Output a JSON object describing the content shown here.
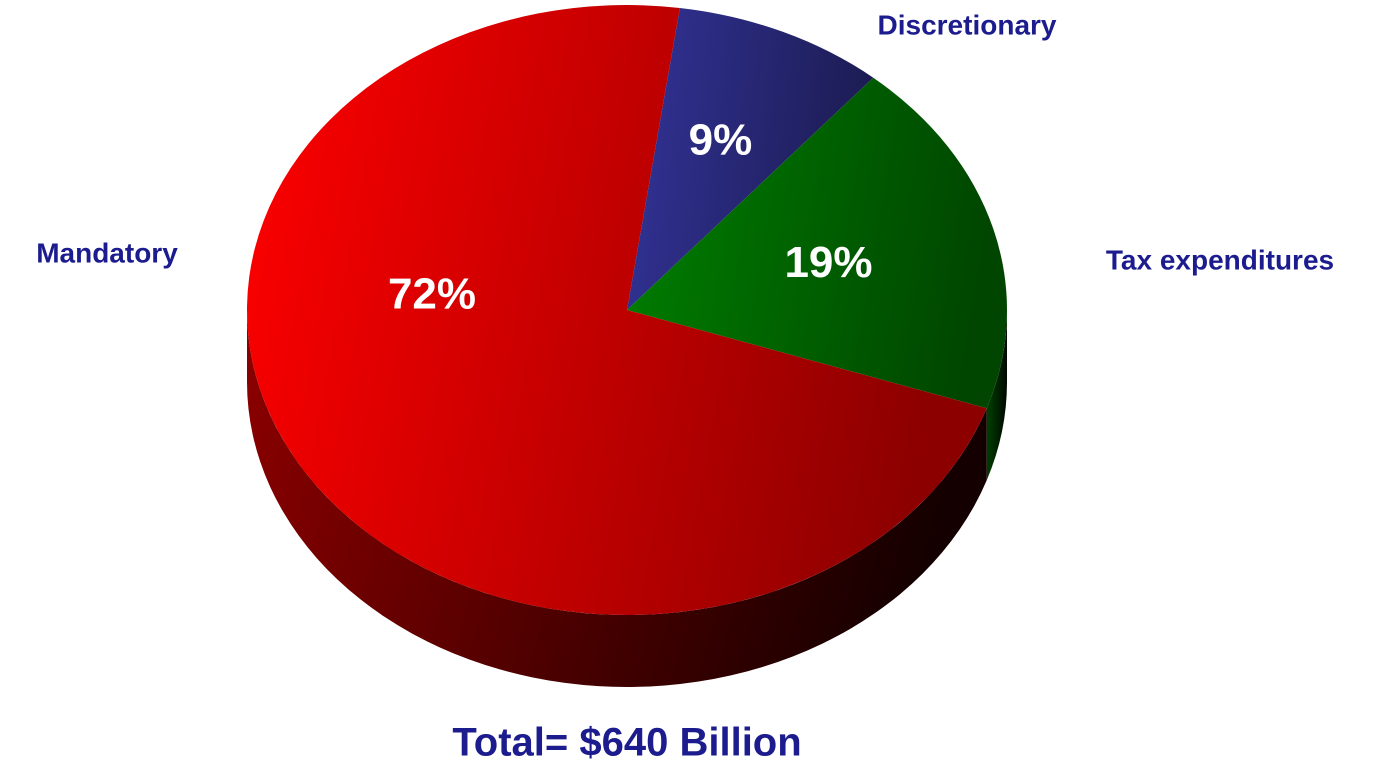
{
  "chart_data": {
    "type": "pie",
    "categories": [
      "Discretionary",
      "Tax expenditures",
      "Mandatory"
    ],
    "values": [
      9,
      19,
      72
    ],
    "value_labels": [
      "9%",
      "19%",
      "72%"
    ],
    "colors": [
      "#333399",
      "#008000",
      "#ff0000"
    ],
    "annotation": "Total= $640 Billion"
  }
}
